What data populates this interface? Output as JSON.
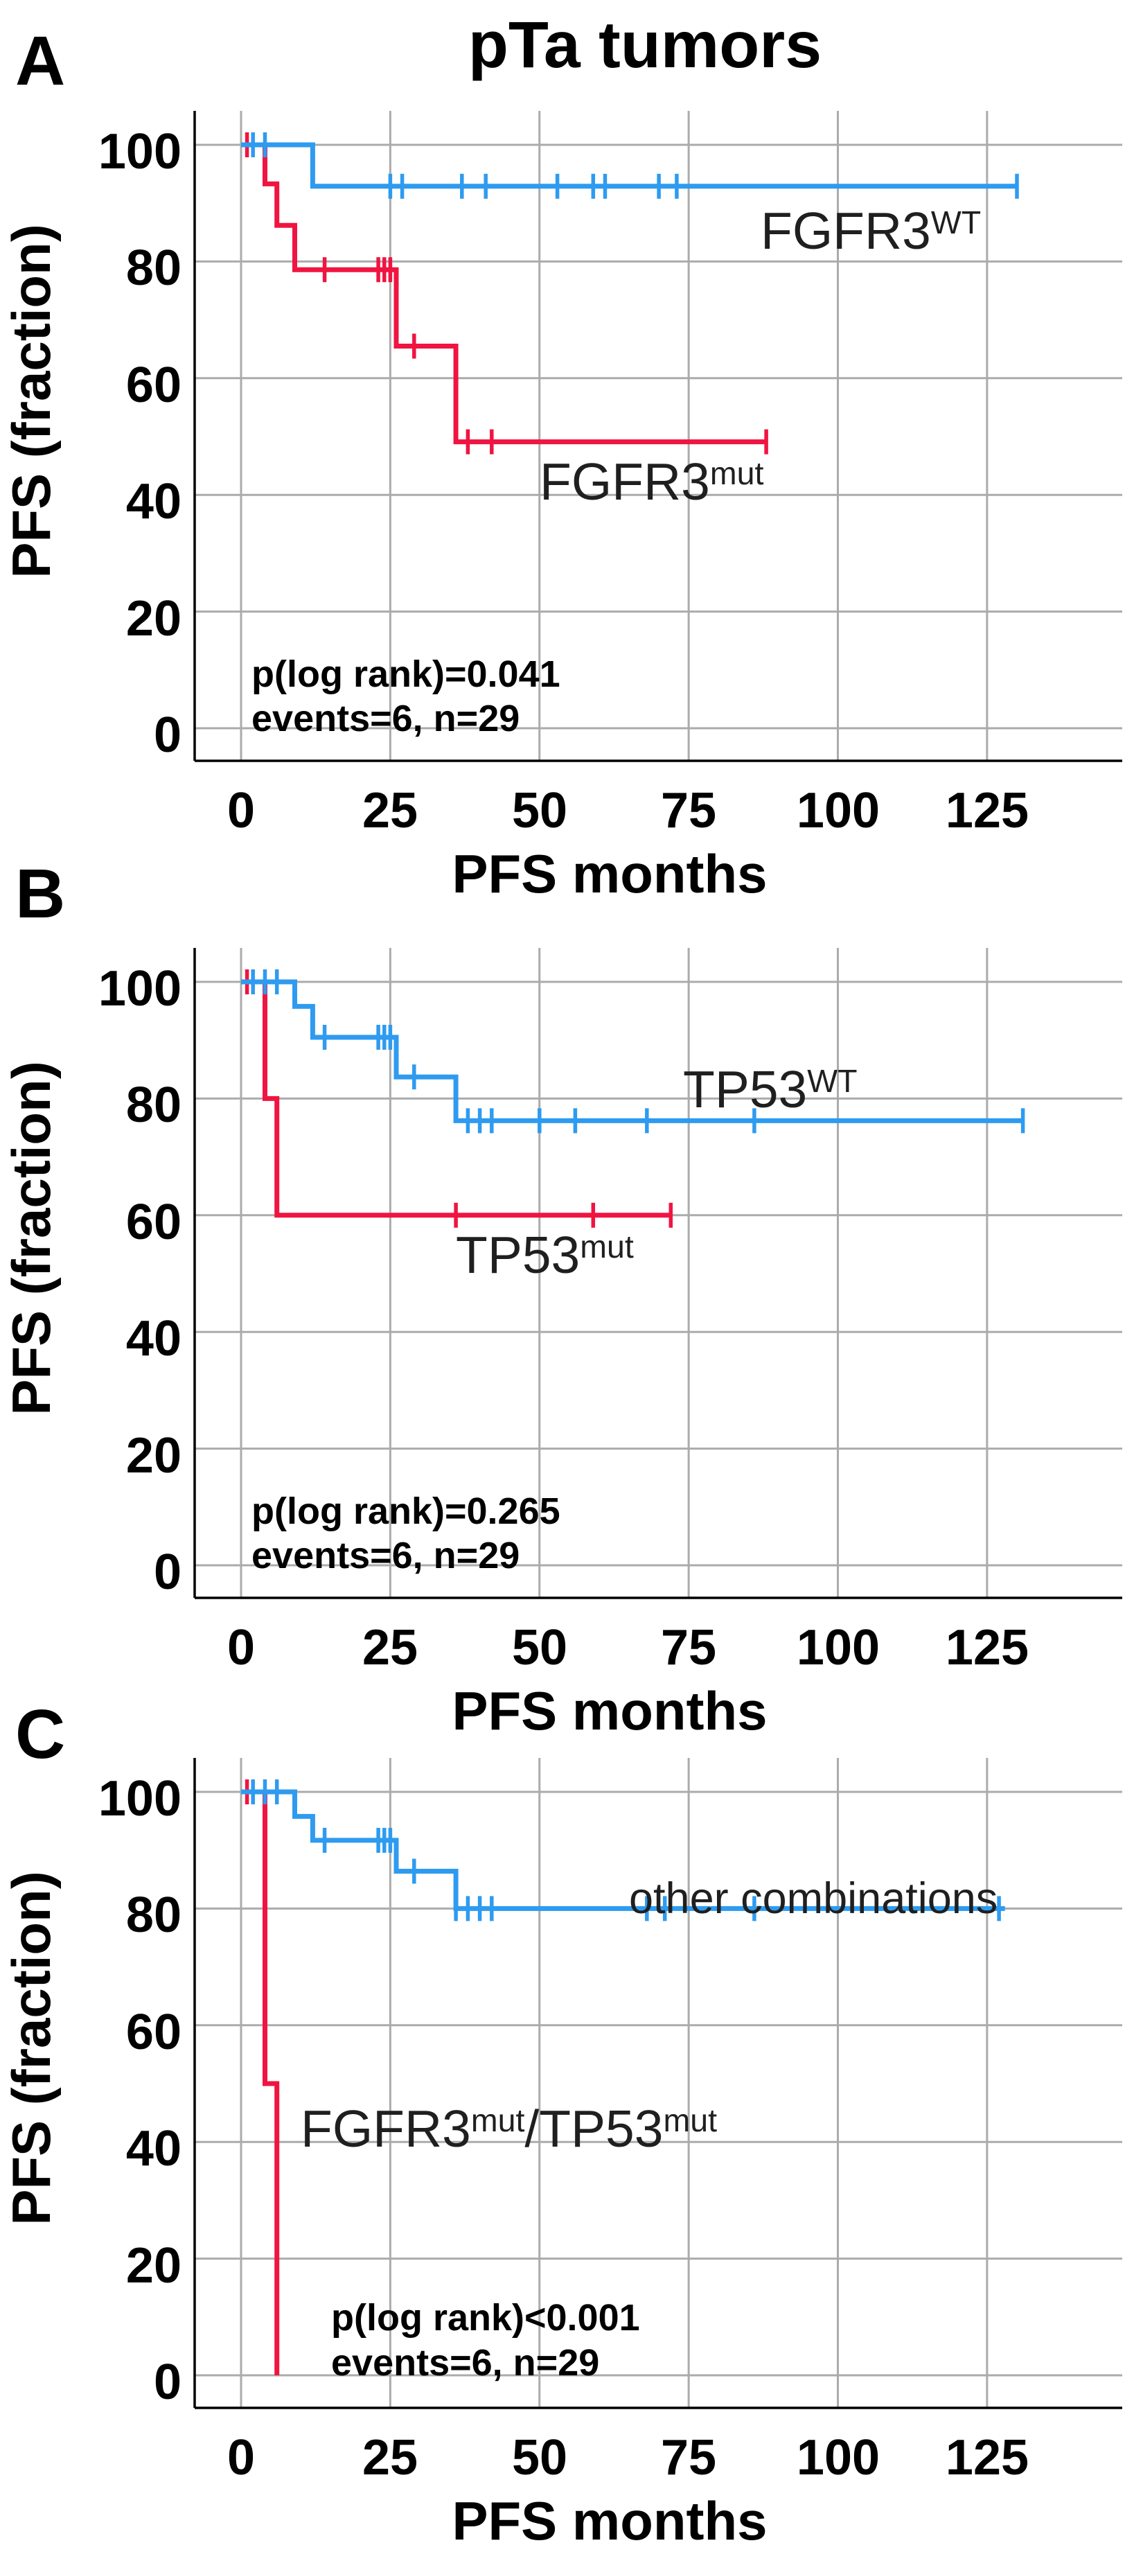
{
  "title": "pTa tumors",
  "colors": {
    "wt_blue": "#2E9BF0",
    "mut_red": "#F01441",
    "grid": "#ABABAB",
    "spine": "#000000",
    "text": "#000000",
    "label_text": "#1F1F1F"
  },
  "axes": {
    "x_label": "PFS months",
    "y_label": "PFS (fraction)",
    "x_ticks": [
      0,
      25,
      50,
      75,
      100,
      125
    ],
    "y_ticks": [
      100,
      80,
      60,
      40,
      20,
      0
    ],
    "grid": true
  },
  "chart_data": [
    {
      "id": "A",
      "panel_letter": "A",
      "type": "line",
      "subtype": "kaplan-meier-step",
      "xlabel": "PFS months",
      "ylabel": "PFS (fraction)",
      "xlim": [
        -8,
        147
      ],
      "ylim": [
        -5.5,
        105.8
      ],
      "x_ticks": [
        0,
        25,
        50,
        75,
        100,
        125
      ],
      "y_ticks": [
        100,
        80,
        60,
        40,
        20,
        0
      ],
      "annotations": [
        {
          "text": "p(log rank)=0.041",
          "t": 1.7,
          "v": 9.3
        },
        {
          "text": "events=6, n=29",
          "t": 1.7,
          "v": 1.7
        }
      ],
      "series": [
        {
          "name": "FGFR3mut",
          "label_parts": [
            {
              "text": "FGFR3",
              "sup": false
            },
            {
              "text": "mut",
              "sup": true
            }
          ],
          "color": "#F01441",
          "steps": [
            [
              0,
              100
            ],
            [
              4,
              100
            ],
            [
              4,
              93.3
            ],
            [
              6,
              93.3
            ],
            [
              6,
              86.2
            ],
            [
              9,
              86.2
            ],
            [
              9,
              78.6
            ],
            [
              26,
              78.6
            ],
            [
              26,
              65.5
            ],
            [
              36,
              65.5
            ],
            [
              36,
              49.1
            ],
            [
              88,
              49.1
            ]
          ],
          "censors_t": [
            1,
            14,
            23,
            24,
            25,
            29,
            38,
            42,
            88
          ],
          "label_anchor": {
            "t": 50,
            "v": 47
          },
          "label_size": 75
        },
        {
          "name": "FGFR3WT",
          "label_parts": [
            {
              "text": "FGFR3",
              "sup": false
            },
            {
              "text": "WT",
              "sup": true
            }
          ],
          "color": "#2E9BF0",
          "steps": [
            [
              0,
              100
            ],
            [
              12,
              100
            ],
            [
              12,
              92.9
            ],
            [
              130,
              92.9
            ]
          ],
          "censors_t": [
            2,
            4,
            25,
            27,
            37,
            41,
            53,
            59,
            61,
            70,
            73,
            130
          ],
          "label_anchor": {
            "t": 87,
            "v": 90
          },
          "label_size": 75
        }
      ]
    },
    {
      "id": "B",
      "panel_letter": "B",
      "type": "line",
      "subtype": "kaplan-meier-step",
      "xlabel": "PFS months",
      "ylabel": "PFS (fraction)",
      "xlim": [
        -8,
        147
      ],
      "ylim": [
        -5.5,
        105.8
      ],
      "x_ticks": [
        0,
        25,
        50,
        75,
        100,
        125
      ],
      "y_ticks": [
        100,
        80,
        60,
        40,
        20,
        0
      ],
      "annotations": [
        {
          "text": "p(log rank)=0.265",
          "t": 1.7,
          "v": 9.3
        },
        {
          "text": "events=6, n=29",
          "t": 1.7,
          "v": 1.7
        }
      ],
      "series": [
        {
          "name": "TP53mut",
          "label_parts": [
            {
              "text": "TP53",
              "sup": false
            },
            {
              "text": "mut",
              "sup": true
            }
          ],
          "color": "#F01441",
          "steps": [
            [
              0,
              100
            ],
            [
              4,
              100
            ],
            [
              4,
              80
            ],
            [
              6,
              80
            ],
            [
              6,
              60
            ],
            [
              72,
              60
            ]
          ],
          "censors_t": [
            1,
            36,
            59,
            72
          ],
          "label_anchor": {
            "t": 36,
            "v": 58
          },
          "label_size": 75
        },
        {
          "name": "TP53WT",
          "label_parts": [
            {
              "text": "TP53",
              "sup": false
            },
            {
              "text": "WT",
              "sup": true
            }
          ],
          "color": "#2E9BF0",
          "steps": [
            [
              0,
              100
            ],
            [
              9,
              100
            ],
            [
              9,
              95.8
            ],
            [
              12,
              95.8
            ],
            [
              12,
              90.5
            ],
            [
              26,
              90.5
            ],
            [
              26,
              83.7
            ],
            [
              36,
              83.7
            ],
            [
              36,
              76.2
            ],
            [
              131,
              76.2
            ]
          ],
          "censors_t": [
            2,
            4,
            6,
            14,
            23,
            24,
            25,
            29,
            38,
            40,
            42,
            50,
            56,
            68,
            86,
            131
          ],
          "label_anchor": {
            "t": 74,
            "v": 86.3
          },
          "label_size": 75
        }
      ]
    },
    {
      "id": "C",
      "panel_letter": "C",
      "type": "line",
      "subtype": "kaplan-meier-step",
      "xlabel": "PFS months",
      "ylabel": "PFS (fraction)",
      "xlim": [
        -8,
        147
      ],
      "ylim": [
        -5.5,
        105.8
      ],
      "x_ticks": [
        0,
        25,
        50,
        75,
        100,
        125
      ],
      "y_ticks": [
        100,
        80,
        60,
        40,
        20,
        0
      ],
      "annotations": [
        {
          "text": "p(log rank)<0.001",
          "t": 15.1,
          "v": 9.9
        },
        {
          "text": "events=6, n=29",
          "t": 15.1,
          "v": 2.1
        }
      ],
      "series": [
        {
          "name": "FGFR3mut/TP53mut",
          "label_parts": [
            {
              "text": "FGFR3",
              "sup": false
            },
            {
              "text": "mut",
              "sup": true
            },
            {
              "text": "/TP53",
              "sup": false
            },
            {
              "text": "mut",
              "sup": true
            }
          ],
          "color": "#F01441",
          "steps": [
            [
              0,
              100
            ],
            [
              4,
              100
            ],
            [
              4,
              50
            ],
            [
              6,
              50
            ],
            [
              6,
              0
            ]
          ],
          "censors_t": [
            1
          ],
          "label_anchor": {
            "t": 10,
            "v": 47
          },
          "label_size": 75
        },
        {
          "name": "other combinations",
          "label_parts": [
            {
              "text": "other combinations",
              "sup": false
            }
          ],
          "color": "#2E9BF0",
          "steps": [
            [
              0,
              100
            ],
            [
              9,
              100
            ],
            [
              9,
              95.8
            ],
            [
              12,
              95.8
            ],
            [
              12,
              91.7
            ],
            [
              26,
              91.7
            ],
            [
              26,
              86.4
            ],
            [
              36,
              86.4
            ],
            [
              36,
              80
            ],
            [
              128,
              80
            ]
          ],
          "censors_t": [
            2,
            4,
            6,
            14,
            23,
            24,
            25,
            29,
            36,
            38,
            40,
            42,
            68,
            71,
            86,
            127
          ],
          "label_anchor": {
            "t": 65,
            "v": 86.5
          },
          "label_size": 63
        }
      ]
    }
  ]
}
